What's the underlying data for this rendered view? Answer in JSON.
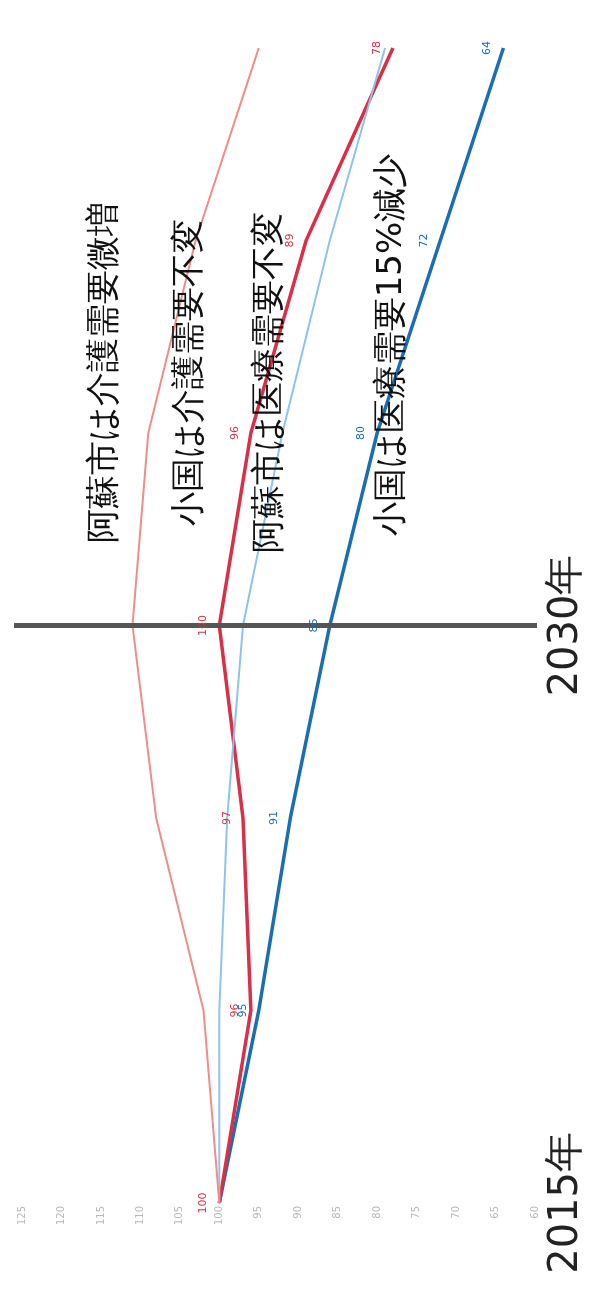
{
  "chart_data": {
    "type": "line",
    "orientation": "horizontal",
    "categories": [
      null,
      null,
      null,
      "2030年",
      null,
      null,
      "2015年"
    ],
    "series": [
      {
        "color": "#ef8c8c",
        "values": [
          95,
          103,
          109,
          111,
          108,
          102,
          100
        ]
      },
      {
        "color": "#8fc3ea",
        "values": [
          79,
          86,
          92,
          97,
          99,
          100,
          100
        ]
      },
      {
        "color": "#d83048",
        "values": [
          78,
          89,
          96,
          100,
          97,
          96,
          100
        ],
        "value_labels": [
          "78",
          "89",
          "96",
          "100",
          "97",
          "96",
          "100"
        ]
      },
      {
        "color": "#1b6fb0",
        "values": [
          64,
          72,
          80,
          86,
          91,
          95,
          100
        ],
        "value_labels": [
          "64",
          "72",
          "80",
          "86",
          "91",
          "95",
          null
        ]
      }
    ],
    "xlim": [
      125,
      60
    ],
    "xticks": [
      125,
      120,
      115,
      110,
      105,
      100,
      95,
      90,
      85,
      80,
      75,
      70,
      65,
      60
    ],
    "ref_lines": [
      {
        "axis": "y",
        "value": "2030年",
        "color": "#555555"
      }
    ],
    "annotations": [
      "阿蘇市は介護需要微増",
      "小国は介護需要不変",
      "阿蘇市は医療需要不変",
      "小国は医療需要15%減少"
    ],
    "grid": false,
    "legend": false,
    "marker": "none"
  }
}
